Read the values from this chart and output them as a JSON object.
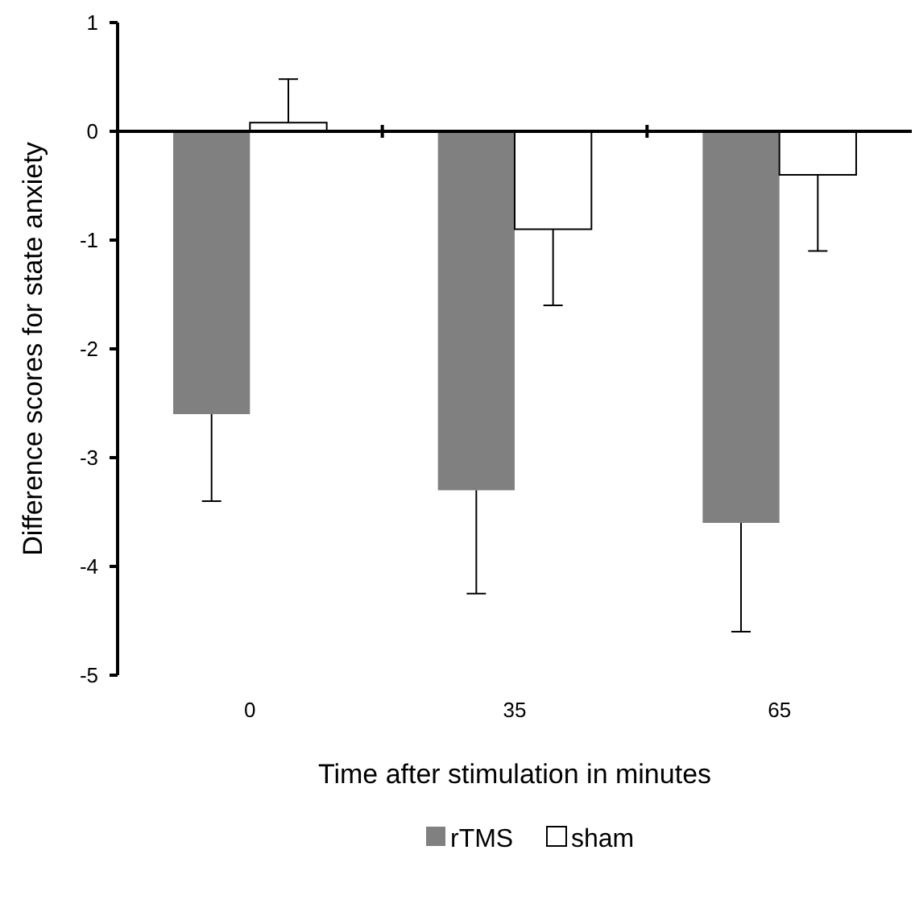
{
  "chart_data": {
    "type": "bar",
    "xlabel": "Time after stimulation in minutes",
    "ylabel": "Difference scores for state anxiety",
    "categories": [
      "0",
      "35",
      "65"
    ],
    "series": [
      {
        "name": "rTMS",
        "color": "#808080",
        "values": [
          -2.6,
          -3.3,
          -3.6
        ],
        "errors": [
          0.8,
          0.95,
          1.0
        ]
      },
      {
        "name": "sham",
        "color": "#ffffff",
        "values": [
          0.08,
          -0.9,
          -0.4
        ],
        "errors": [
          0.4,
          0.7,
          0.7
        ]
      }
    ],
    "ylim": [
      -5,
      1
    ],
    "yticks": [
      -5,
      -4,
      -3,
      -2,
      -1,
      0,
      1
    ],
    "legend": "bottom"
  }
}
